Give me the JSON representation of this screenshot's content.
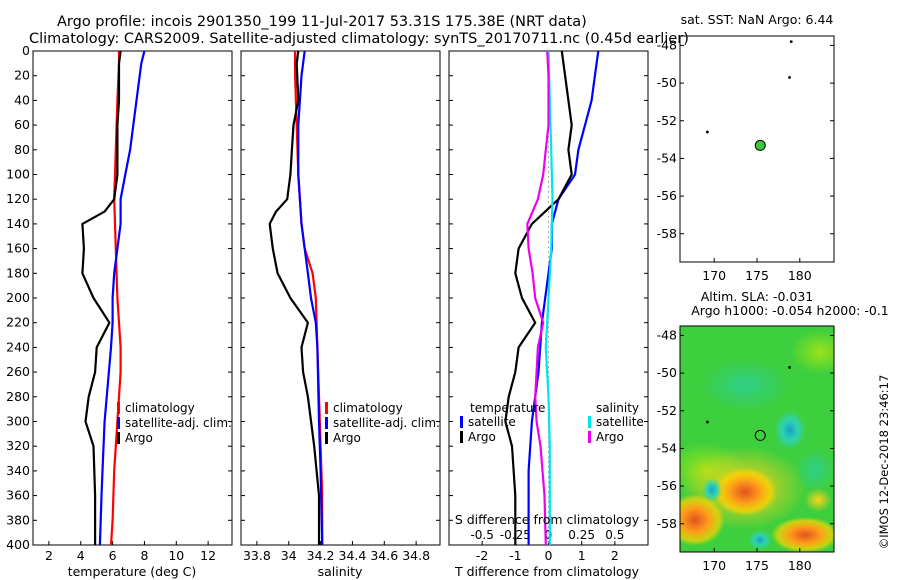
{
  "header": {
    "title_line1": "Argo profile: incois 2901350_199 11-Jul-2017 53.31S 175.38E (NRT data)",
    "title_line2": "Climatology: CARS2009. Satellite-adjusted climatology: synTS_20170711.nc (0.45d earlier)"
  },
  "watermark": "©IMOS 12-Dec-2018 23:46:17",
  "colors": {
    "climatology": "#ff0000",
    "satellite": "#0000ff",
    "argo": "#000000",
    "sal_satellite": "#00e5ee",
    "sal_argo": "#ee00ee"
  },
  "chart_data": [
    {
      "id": "temperature",
      "type": "line",
      "xlabel": "temperature (deg C)",
      "ylabel": "",
      "xlim": [
        1,
        13.5
      ],
      "ylim": [
        400,
        0
      ],
      "xticks": [
        2,
        4,
        6,
        8,
        10,
        12
      ],
      "yticks": [
        0,
        20,
        40,
        60,
        80,
        100,
        120,
        140,
        160,
        180,
        200,
        220,
        240,
        260,
        280,
        300,
        320,
        340,
        360,
        380,
        400
      ],
      "legend": {
        "position": "bottom-right",
        "entries": [
          "climatology",
          "satellite-adj. clim.",
          "Argo"
        ]
      },
      "series": [
        {
          "name": "climatology",
          "color": "#ff0000",
          "points": [
            [
              6.4,
              0
            ],
            [
              6.4,
              10
            ],
            [
              6.3,
              40
            ],
            [
              6.2,
              80
            ],
            [
              6.1,
              120
            ],
            [
              6.2,
              160
            ],
            [
              6.3,
              200
            ],
            [
              6.5,
              240
            ],
            [
              6.5,
              260
            ],
            [
              6.3,
              300
            ],
            [
              6.1,
              340
            ],
            [
              6.0,
              380
            ],
            [
              5.9,
              400
            ]
          ]
        },
        {
          "name": "satellite-adj. clim.",
          "color": "#0000ff",
          "points": [
            [
              8.0,
              0
            ],
            [
              7.8,
              10
            ],
            [
              7.6,
              30
            ],
            [
              7.3,
              60
            ],
            [
              7.1,
              80
            ],
            [
              6.8,
              100
            ],
            [
              6.5,
              120
            ],
            [
              6.5,
              140
            ],
            [
              6.3,
              160
            ],
            [
              6.1,
              180
            ],
            [
              6.0,
              200
            ],
            [
              6.0,
              220
            ],
            [
              5.9,
              240
            ],
            [
              5.7,
              270
            ],
            [
              5.5,
              300
            ],
            [
              5.4,
              330
            ],
            [
              5.3,
              360
            ],
            [
              5.2,
              400
            ]
          ]
        },
        {
          "name": "Argo",
          "color": "#000000",
          "points": [
            [
              6.5,
              0
            ],
            [
              6.4,
              10
            ],
            [
              6.4,
              40
            ],
            [
              6.3,
              60
            ],
            [
              6.3,
              100
            ],
            [
              6.1,
              120
            ],
            [
              5.5,
              130
            ],
            [
              4.1,
              140
            ],
            [
              4.2,
              160
            ],
            [
              4.1,
              180
            ],
            [
              4.8,
              200
            ],
            [
              5.8,
              220
            ],
            [
              5.0,
              240
            ],
            [
              4.9,
              260
            ],
            [
              4.5,
              280
            ],
            [
              4.3,
              300
            ],
            [
              4.8,
              320
            ],
            [
              4.9,
              360
            ],
            [
              4.9,
              400
            ]
          ]
        }
      ]
    },
    {
      "id": "salinity",
      "type": "line",
      "xlabel": "salinity",
      "ylabel": "",
      "xlim": [
        33.7,
        34.95
      ],
      "ylim": [
        400,
        0
      ],
      "xticks": [
        33.8,
        34,
        34.2,
        34.4,
        34.6,
        34.8
      ],
      "legend": {
        "position": "bottom-right",
        "entries": [
          "climatology",
          "satellite-adj. clim.",
          "Argo"
        ]
      },
      "series": [
        {
          "name": "climatology",
          "color": "#ff0000",
          "points": [
            [
              34.04,
              0
            ],
            [
              34.04,
              20
            ],
            [
              34.05,
              60
            ],
            [
              34.06,
              100
            ],
            [
              34.08,
              140
            ],
            [
              34.1,
              160
            ],
            [
              34.15,
              180
            ],
            [
              34.17,
              200
            ],
            [
              34.18,
              240
            ],
            [
              34.19,
              280
            ],
            [
              34.2,
              320
            ],
            [
              34.21,
              360
            ],
            [
              34.21,
              400
            ]
          ]
        },
        {
          "name": "satellite-adj. clim.",
          "color": "#0000ff",
          "points": [
            [
              34.1,
              0
            ],
            [
              34.08,
              20
            ],
            [
              34.06,
              60
            ],
            [
              34.06,
              100
            ],
            [
              34.08,
              140
            ],
            [
              34.1,
              160
            ],
            [
              34.12,
              180
            ],
            [
              34.14,
              200
            ],
            [
              34.17,
              220
            ],
            [
              34.18,
              240
            ],
            [
              34.19,
              300
            ],
            [
              34.2,
              340
            ],
            [
              34.21,
              400
            ]
          ]
        },
        {
          "name": "Argo",
          "color": "#000000",
          "points": [
            [
              34.06,
              0
            ],
            [
              34.05,
              10
            ],
            [
              34.06,
              40
            ],
            [
              34.03,
              60
            ],
            [
              34.02,
              80
            ],
            [
              34.01,
              100
            ],
            [
              33.99,
              120
            ],
            [
              33.92,
              130
            ],
            [
              33.88,
              140
            ],
            [
              33.9,
              160
            ],
            [
              33.93,
              180
            ],
            [
              34.01,
              200
            ],
            [
              34.12,
              220
            ],
            [
              34.08,
              240
            ],
            [
              34.09,
              260
            ],
            [
              34.12,
              280
            ],
            [
              34.16,
              320
            ],
            [
              34.19,
              360
            ],
            [
              34.19,
              400
            ]
          ]
        }
      ]
    },
    {
      "id": "difference",
      "type": "line",
      "xlabel": "T difference from climatology",
      "secondary_xlabel": "S difference from climatology",
      "xlim": [
        -3,
        3
      ],
      "ylim": [
        400,
        0
      ],
      "xticks": [
        -2,
        -1,
        0,
        1,
        2
      ],
      "secondary_xticks": [
        -0.5,
        -0.25,
        0,
        0.25,
        0.5
      ],
      "secondary_xlim": [
        -0.75,
        0.75
      ],
      "legend_left": {
        "title": "temperature",
        "entries": [
          "satellite",
          "Argo"
        ]
      },
      "legend_right": {
        "title": "salinity",
        "entries": [
          "satellite",
          "Argo"
        ]
      },
      "series": [
        {
          "name": "T satellite",
          "color": "#0000ff",
          "axis": "T",
          "points": [
            [
              1.5,
              0
            ],
            [
              1.4,
              20
            ],
            [
              1.3,
              40
            ],
            [
              1.1,
              60
            ],
            [
              0.9,
              80
            ],
            [
              0.8,
              100
            ],
            [
              0.3,
              120
            ],
            [
              0.1,
              140
            ],
            [
              0.1,
              160
            ],
            [
              0.0,
              180
            ],
            [
              -0.1,
              200
            ],
            [
              -0.2,
              220
            ],
            [
              -0.3,
              260
            ],
            [
              -0.5,
              300
            ],
            [
              -0.6,
              340
            ],
            [
              -0.6,
              400
            ]
          ]
        },
        {
          "name": "T Argo",
          "color": "#000000",
          "axis": "T",
          "points": [
            [
              0.4,
              0
            ],
            [
              0.5,
              20
            ],
            [
              0.7,
              60
            ],
            [
              0.6,
              80
            ],
            [
              0.7,
              100
            ],
            [
              0.3,
              120
            ],
            [
              -0.5,
              140
            ],
            [
              -0.9,
              160
            ],
            [
              -1.0,
              180
            ],
            [
              -0.8,
              200
            ],
            [
              -0.4,
              220
            ],
            [
              -0.9,
              240
            ],
            [
              -1.0,
              260
            ],
            [
              -1.2,
              280
            ],
            [
              -1.3,
              300
            ],
            [
              -1.1,
              320
            ],
            [
              -1.0,
              360
            ],
            [
              -1.0,
              400
            ]
          ]
        },
        {
          "name": "S satellite",
          "color": "#00e5ee",
          "axis": "S",
          "points": [
            [
              0.0,
              0
            ],
            [
              0.01,
              40
            ],
            [
              0.02,
              80
            ],
            [
              0.03,
              120
            ],
            [
              0.02,
              160
            ],
            [
              0.0,
              200
            ],
            [
              -0.02,
              240
            ],
            [
              0.0,
              280
            ],
            [
              0.01,
              320
            ],
            [
              0.01,
              360
            ],
            [
              0.01,
              400
            ]
          ]
        },
        {
          "name": "S Argo",
          "color": "#ee00ee",
          "axis": "S",
          "points": [
            [
              -0.01,
              0
            ],
            [
              0.0,
              20
            ],
            [
              0.0,
              60
            ],
            [
              -0.02,
              80
            ],
            [
              -0.04,
              100
            ],
            [
              -0.08,
              120
            ],
            [
              -0.16,
              140
            ],
            [
              -0.15,
              160
            ],
            [
              -0.12,
              180
            ],
            [
              -0.1,
              200
            ],
            [
              -0.04,
              220
            ],
            [
              -0.08,
              240
            ],
            [
              -0.09,
              260
            ],
            [
              -0.1,
              280
            ],
            [
              -0.09,
              300
            ],
            [
              -0.06,
              320
            ],
            [
              -0.03,
              360
            ],
            [
              -0.02,
              400
            ]
          ]
        }
      ]
    },
    {
      "id": "sat_sst",
      "type": "scatter",
      "title": "sat. SST: NaN Argo: 6.44",
      "xlim": [
        166,
        184
      ],
      "ylim": [
        -59.5,
        -47.5
      ],
      "xticks": [
        170,
        175,
        180
      ],
      "yticks": [
        -48,
        -50,
        -52,
        -54,
        -56,
        -58
      ],
      "points": [
        {
          "x": 175.38,
          "y": -53.31,
          "kind": "argo"
        },
        {
          "x": 169.2,
          "y": -52.6,
          "kind": "dot"
        },
        {
          "x": 178.8,
          "y": -49.7,
          "kind": "dot"
        },
        {
          "x": 179.0,
          "y": -47.8,
          "kind": "dot"
        }
      ]
    },
    {
      "id": "altim",
      "type": "heatmap",
      "title_line1": "Altim. SLA: -0.031",
      "title_line2": "Argo h1000: -0.054 h2000: -0.1",
      "xlim": [
        166,
        184
      ],
      "ylim": [
        -59.5,
        -47.5
      ],
      "xticks": [
        170,
        175,
        180
      ],
      "yticks": [
        -48,
        -50,
        -52,
        -54,
        -56,
        -58
      ],
      "points": [
        {
          "x": 175.38,
          "y": -53.31,
          "kind": "argo"
        },
        {
          "x": 169.2,
          "y": -52.6,
          "kind": "dot"
        },
        {
          "x": 178.8,
          "y": -49.7,
          "kind": "dot"
        }
      ]
    }
  ]
}
